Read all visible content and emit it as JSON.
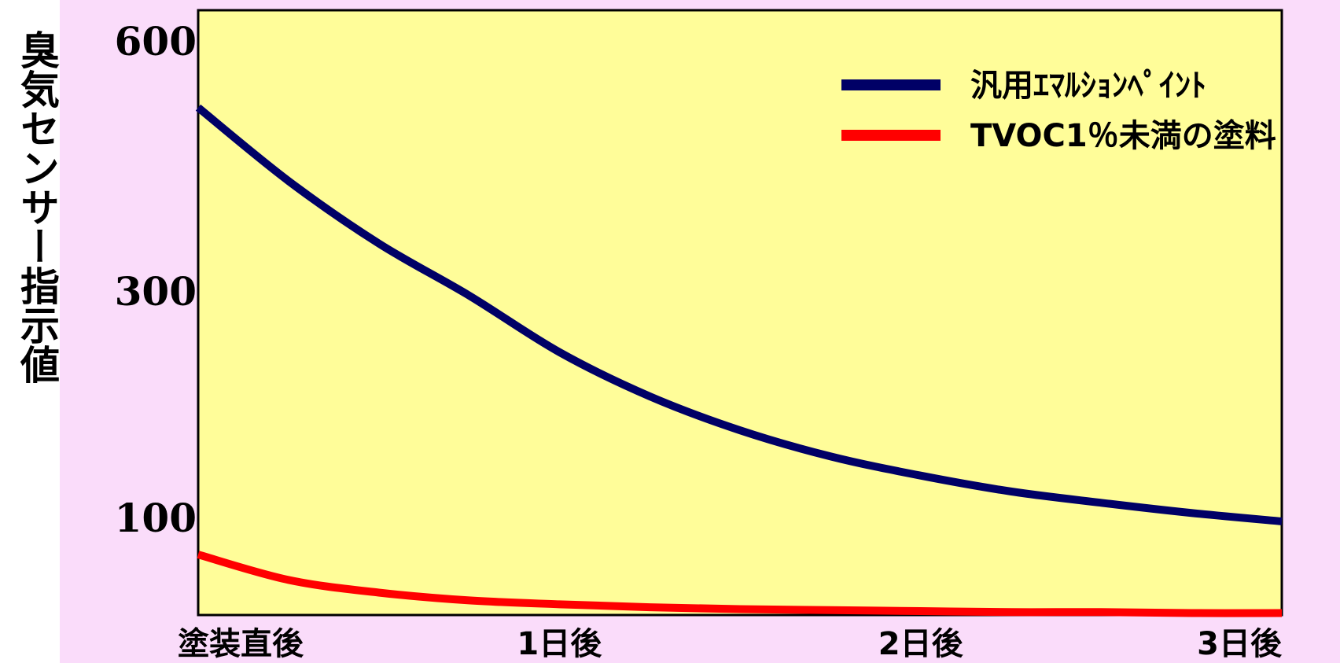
{
  "chart_data": {
    "type": "line",
    "ylabel": "臭気センサー指示値",
    "xlabel": "",
    "categories": [
      "塗装直後",
      "1日後",
      "2日後",
      "3日後"
    ],
    "y_ticks": [
      600,
      300,
      100
    ],
    "ylim": [
      0,
      600
    ],
    "grid": false,
    "legend_position": "top-right",
    "series": [
      {
        "name": "汎用ｴﾏﾙｼｮﾝﾍﾟｲﾝﾄ",
        "color": "#000066",
        "x": [
          0,
          0.25,
          0.5,
          0.75,
          1,
          1.25,
          1.5,
          1.75,
          2,
          2.25,
          2.5,
          2.75,
          3
        ],
        "values": [
          520,
          432,
          357,
          296,
          246,
          207,
          177,
          154,
          137,
          123,
          113,
          104,
          96
        ]
      },
      {
        "name": "TVOC1％未満の塗料",
        "color": "#ff0000",
        "x": [
          0,
          0.25,
          0.5,
          0.75,
          1,
          1.25,
          1.5,
          1.75,
          2,
          2.25,
          2.5,
          2.75,
          3
        ],
        "values": [
          62,
          36,
          23,
          15,
          11,
          8,
          6,
          5,
          4,
          3,
          3,
          2,
          2
        ]
      }
    ]
  },
  "colors": {
    "plot_background": "#fffd99",
    "page_background": "#fadcfa",
    "axis": "#000000"
  }
}
